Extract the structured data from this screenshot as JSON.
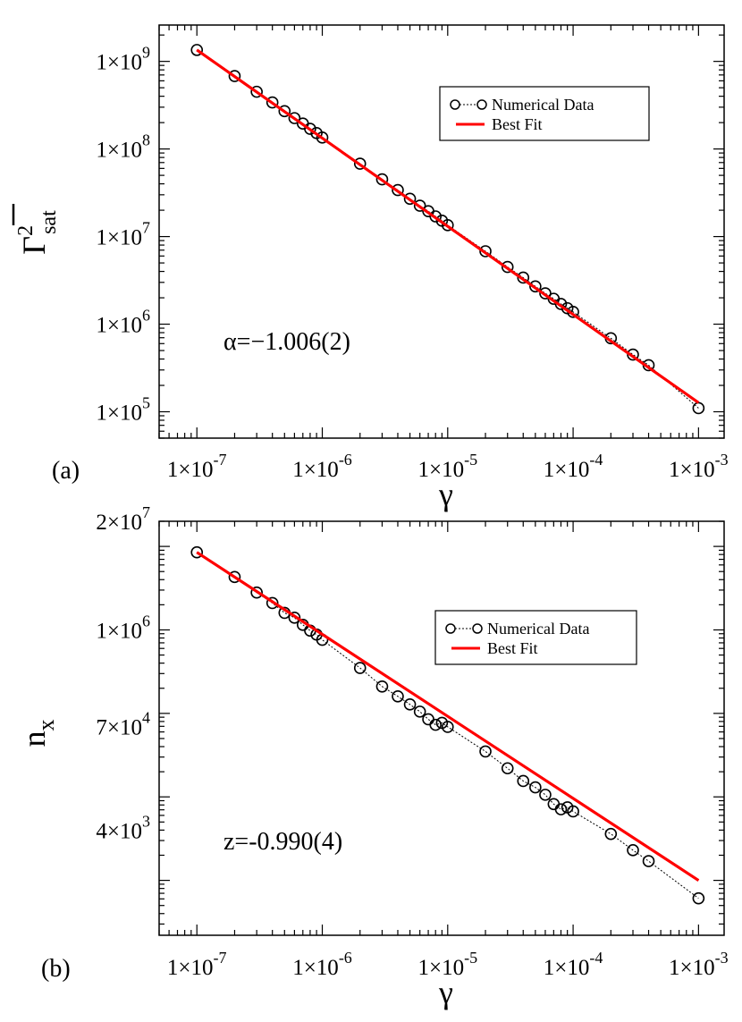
{
  "chart_data": [
    {
      "panel_label": "(a)",
      "type": "line",
      "xlabel": "γ",
      "ylabel_main": "Γ",
      "ylabel_sup": "2",
      "ylabel_sub": "sat",
      "xscale": "log",
      "yscale": "log",
      "xlim": [
        5e-08,
        0.0016
      ],
      "ylim": [
        50000.0,
        2600000000.0
      ],
      "x_tick_labels": [
        "1×10",
        "1×10",
        "1×10",
        "1×10",
        "1×10"
      ],
      "x_tick_exponents": [
        "-7",
        "-6",
        "-5",
        "-4",
        "-3"
      ],
      "x_ticks": [
        1e-07,
        1e-06,
        1e-05,
        0.0001,
        0.001
      ],
      "y_tick_labels": [
        "1×10",
        "1×10",
        "1×10",
        "1×10",
        "1×10"
      ],
      "y_tick_exponents": [
        "5",
        "6",
        "7",
        "8",
        "9"
      ],
      "y_ticks": [
        100000.0,
        1000000.0,
        10000000.0,
        100000000.0,
        1000000000.0
      ],
      "legend_position": "top-right",
      "annotation": "α=−1.006(2)",
      "series": [
        {
          "name": "Numerical Data",
          "style": "circles-dotted",
          "color": "#000000",
          "x": [
            1e-07,
            2e-07,
            3e-07,
            4e-07,
            5e-07,
            6e-07,
            7e-07,
            8e-07,
            9e-07,
            1e-06,
            2e-06,
            3e-06,
            4e-06,
            5e-06,
            6e-06,
            7e-06,
            8e-06,
            9e-06,
            1e-05,
            2e-05,
            3e-05,
            4e-05,
            5e-05,
            6e-05,
            7e-05,
            8e-05,
            9e-05,
            0.0001,
            0.0002,
            0.0003,
            0.0004,
            0.001
          ],
          "y": [
            1350000000.0,
            680000000.0,
            450000000.0,
            340000000.0,
            270000000.0,
            225000000.0,
            195000000.0,
            170000000.0,
            152000000.0,
            135000000.0,
            68000000.0,
            45000000.0,
            34000000.0,
            27000000.0,
            22500000.0,
            19500000.0,
            17000000.0,
            15200000.0,
            13500000.0,
            6800000.0,
            4500000.0,
            3400000.0,
            2700000.0,
            2250000.0,
            1950000.0,
            1700000.0,
            1520000.0,
            1380000.0,
            690000.0,
            450000.0,
            340000.0,
            110000.0
          ]
        },
        {
          "name": "Best Fit",
          "style": "line",
          "color": "#ff0000",
          "x": [
            1e-07,
            0.001
          ],
          "y": [
            1350000000.0,
            127000.0
          ]
        }
      ]
    },
    {
      "panel_label": "(b)",
      "type": "line",
      "xlabel": "γ",
      "ylabel_main": "n",
      "ylabel_sub": "x",
      "xscale": "log",
      "yscale": "log",
      "xlim": [
        5e-08,
        0.0016
      ],
      "ylim": [
        220,
        20000000.0
      ],
      "x_tick_labels": [
        "1×10",
        "1×10",
        "1×10",
        "1×10",
        "1×10"
      ],
      "x_tick_exponents": [
        "-7",
        "-6",
        "-5",
        "-4",
        "-3"
      ],
      "x_ticks": [
        1e-07,
        1e-06,
        1e-05,
        0.0001,
        0.001
      ],
      "y_tick_labels": [
        "4×10",
        "7×10",
        "1×10",
        "2×10"
      ],
      "y_tick_exponents": [
        "3",
        "4",
        "6",
        "7"
      ],
      "y_ticks": [
        4000.0,
        70000.0,
        1000000.0,
        20000000.0
      ],
      "legend_position": "top-right",
      "annotation": "z=-0.990(4)",
      "series": [
        {
          "name": "Numerical Data",
          "style": "circles-dotted",
          "color": "#000000",
          "x": [
            1e-07,
            2e-07,
            3e-07,
            4e-07,
            5e-07,
            6e-07,
            7e-07,
            8e-07,
            9e-07,
            1e-06,
            2e-06,
            3e-06,
            4e-06,
            5e-06,
            6e-06,
            7e-06,
            8e-06,
            9e-06,
            1e-05,
            2e-05,
            3e-05,
            4e-05,
            5e-05,
            6e-05,
            7e-05,
            8e-05,
            9e-05,
            0.0001,
            0.0002,
            0.0003,
            0.0004,
            0.001
          ],
          "y": [
            8500000.0,
            4300000.0,
            2800000.0,
            2100000.0,
            1600000.0,
            1400000.0,
            1150000.0,
            980000.0,
            880000.0,
            760000.0,
            350000.0,
            210000.0,
            160000.0,
            128000.0,
            105000.0,
            85000.0,
            73000.0,
            77000.0,
            69000.0,
            35000.0,
            22000.0,
            15500.0,
            13000.0,
            10600.0,
            8200.0,
            7100.0,
            7500.0,
            6700.0,
            3600.0,
            2300.0,
            1700.0,
            610.0
          ]
        },
        {
          "name": "Best Fit",
          "style": "line",
          "color": "#ff0000",
          "x": [
            1e-07,
            0.001
          ],
          "y": [
            8500000.0,
            1000.0
          ]
        }
      ]
    }
  ]
}
